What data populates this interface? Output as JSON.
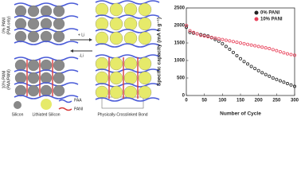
{
  "diagram": {
    "row_labels": [
      "0% PANI",
      "(PAA only)",
      "10% PANI",
      "(PAA/PANI)"
    ],
    "arrow_labels": [
      "+ Li",
      "-Li"
    ],
    "legend": [
      "Silicon",
      "Lithiated Silicon",
      "PAA",
      "PANI",
      "Physically-Crosslinked Bond"
    ]
  },
  "chart_data": {
    "type": "scatter",
    "x_label": "Number of Cycle",
    "y_label": "Specific capacity (mA h g⁻¹)",
    "x": [
      0,
      10,
      20,
      30,
      40,
      50,
      60,
      70,
      80,
      90,
      100,
      110,
      120,
      130,
      140,
      150,
      160,
      170,
      180,
      190,
      200,
      210,
      220,
      230,
      240,
      250,
      260,
      270,
      280,
      290,
      300
    ],
    "series": [
      {
        "name": "0%  PANI",
        "color": "#222222",
        "values": [
          1950,
          1800,
          1780,
          1760,
          1740,
          1720,
          1700,
          1650,
          1600,
          1550,
          1480,
          1400,
          1320,
          1230,
          1140,
          1050,
          970,
          900,
          830,
          770,
          710,
          650,
          600,
          550,
          500,
          460,
          420,
          380,
          340,
          300,
          260
        ]
      },
      {
        "name": "10% PANI",
        "color": "#e8415a",
        "values": [
          2000,
          1850,
          1800,
          1760,
          1720,
          1700,
          1680,
          1660,
          1640,
          1620,
          1600,
          1580,
          1560,
          1540,
          1520,
          1500,
          1480,
          1460,
          1440,
          1420,
          1400,
          1380,
          1360,
          1340,
          1310,
          1280,
          1250,
          1220,
          1190,
          1170,
          1150
        ]
      }
    ],
    "xlim": [
      0,
      300
    ],
    "xticks": [
      0,
      50,
      100,
      150,
      200,
      250,
      300
    ],
    "ylim": [
      0,
      2500
    ],
    "yticks": [
      0,
      500,
      1000,
      1500,
      2000,
      2500
    ],
    "legend": "upper right"
  }
}
